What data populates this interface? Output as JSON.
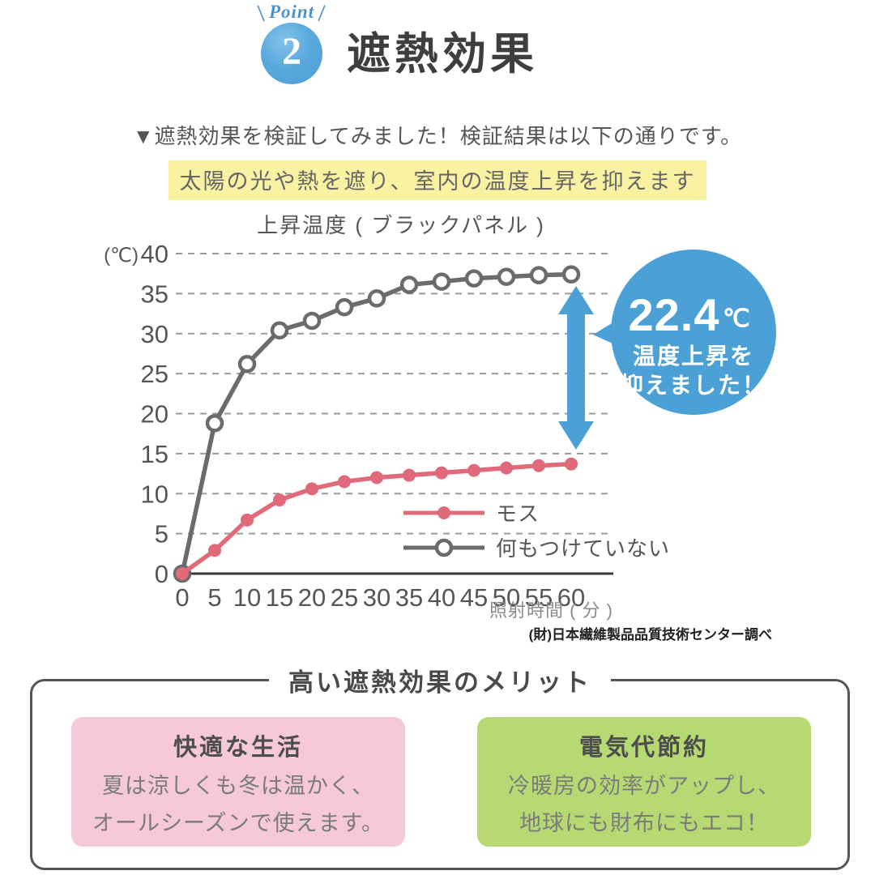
{
  "badge": {
    "label": "Point",
    "number": "2"
  },
  "title": "遮熱効果",
  "intro": "▼遮熱効果を検証してみました！検証結果は以下の通りです。",
  "highlight": "太陽の光や熱を遮り、室内の温度上昇を抑えます",
  "colors": {
    "accent_blue": "#4ba0d5",
    "line_pink": "#e0697a",
    "line_gray": "#6b6b6b",
    "highlight_yellow": "#f8f2a2",
    "card_pink": "#f5c9d8",
    "card_green": "#b7d973"
  },
  "chart_data": {
    "type": "line",
    "title": "上昇温度 ( ブラックパネル )",
    "y_unit_label": "(℃)",
    "xlabel": "照射時間 ( 分 )",
    "x": [
      0,
      5,
      10,
      15,
      20,
      25,
      30,
      35,
      40,
      45,
      50,
      55,
      60
    ],
    "ylim": [
      0,
      40
    ],
    "ytick_step": 5,
    "yticks": [
      0,
      5,
      10,
      15,
      20,
      25,
      30,
      35,
      40
    ],
    "grid": "dashed horizontal gridlines",
    "legend_position": "inside lower right",
    "series": [
      {
        "name": "モス",
        "color": "#e0697a",
        "marker": "filled-circle",
        "values": [
          0,
          2.9,
          6.7,
          9.2,
          10.6,
          11.5,
          12.0,
          12.3,
          12.6,
          12.9,
          13.2,
          13.5,
          13.7
        ]
      },
      {
        "name": "何もつけていない",
        "color": "#6b6b6b",
        "marker": "open-circle",
        "values": [
          0,
          18.8,
          26.2,
          30.4,
          31.6,
          33.3,
          34.4,
          36.1,
          36.5,
          36.9,
          37.1,
          37.3,
          37.4
        ]
      }
    ],
    "annotation": {
      "value": "22.4",
      "unit": "℃",
      "line1": "温度上昇を",
      "line2": "抑えました！",
      "color": "#4ba0d5"
    }
  },
  "source": "(財)日本繊維製品品質技術センター調べ",
  "merits": {
    "heading": "高い遮熱効果のメリット",
    "cards": [
      {
        "title": "快適な生活",
        "line1": "夏は涼しくも冬は温かく、",
        "line2": "オールシーズンで使えます。",
        "bg": "#f5c9d8"
      },
      {
        "title": "電気代節約",
        "line1": "冷暖房の効率がアップし、",
        "line2": "地球にも財布にもエコ！",
        "bg": "#b7d973"
      }
    ]
  }
}
